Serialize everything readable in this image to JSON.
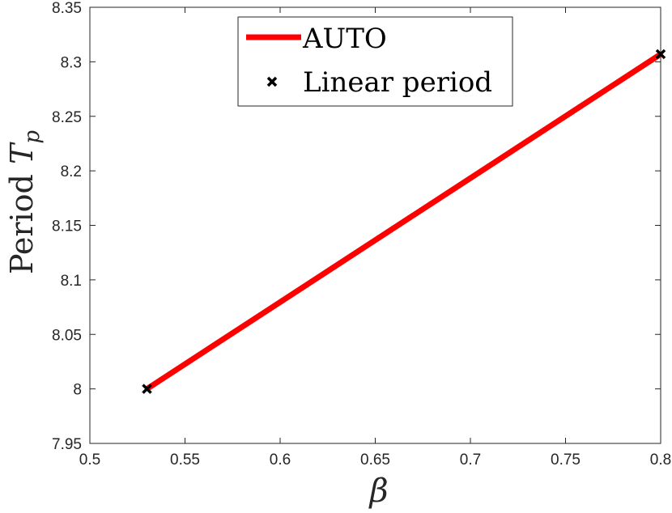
{
  "chart_data": {
    "type": "line",
    "xlabel": "β",
    "ylabel_text": "Period ",
    "ylabel_symbol": "T",
    "ylabel_subscript": "p",
    "xlim": [
      0.5,
      0.8
    ],
    "ylim": [
      7.95,
      8.35
    ],
    "xticks": [
      0.5,
      0.55,
      0.6,
      0.65,
      0.7,
      0.75,
      0.8
    ],
    "xtick_labels": [
      "0.5",
      "0.55",
      "0.6",
      "0.65",
      "0.7",
      "0.75",
      "0.8"
    ],
    "yticks": [
      7.95,
      8.0,
      8.05,
      8.1,
      8.15,
      8.2,
      8.25,
      8.3,
      8.35
    ],
    "ytick_labels": [
      "7.95",
      "8",
      "8.05",
      "8.1",
      "8.15",
      "8.2",
      "8.25",
      "8.3",
      "8.35"
    ],
    "grid": false,
    "legend_position": "top-center",
    "series": [
      {
        "name": "AUTO",
        "kind": "line",
        "color": "#ff0000",
        "x": [
          0.53,
          0.8
        ],
        "y": [
          8.0,
          8.307
        ]
      },
      {
        "name": "Linear period",
        "kind": "scatter",
        "marker": "x",
        "color": "#000000",
        "x": [
          0.53,
          0.8
        ],
        "y": [
          8.0,
          8.307
        ]
      }
    ]
  }
}
